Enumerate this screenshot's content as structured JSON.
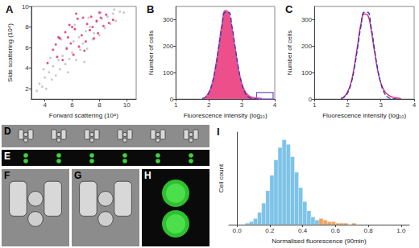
{
  "chart_data": [
    {
      "type": "scatter",
      "title": "A",
      "xlabel": "Forward scattering (10⁴)",
      "ylabel": "Side scattering (10⁴)",
      "xlim": [
        3,
        10.7
      ],
      "xticks": [
        4,
        6,
        8,
        10
      ],
      "ylim": [
        1,
        10
      ],
      "yticks": [
        2,
        4,
        6,
        8,
        10
      ],
      "series": [
        {
          "color": "#bdbdbd",
          "x": [
            3.4,
            3.6,
            3.8,
            4.0,
            4.1,
            4.3,
            4.5,
            4.6,
            4.8,
            5.0,
            5.1,
            5.3,
            5.5,
            5.6,
            5.8,
            6.0,
            6.1,
            6.3,
            6.5,
            6.6,
            6.8,
            7.0,
            7.1,
            7.3,
            7.5,
            7.6,
            7.8,
            8.0,
            8.2,
            8.4,
            8.6,
            8.8,
            9.0,
            9.2,
            9.5,
            9.8,
            4.4,
            5.2,
            6.2,
            7.2,
            8.1,
            9.1,
            3.9,
            5.7,
            6.9
          ],
          "values": [
            1.8,
            2.5,
            2.2,
            3.1,
            2.0,
            3.6,
            2.9,
            4.2,
            3.3,
            4.8,
            3.9,
            5.2,
            4.4,
            6.0,
            4.9,
            5.5,
            6.6,
            4.8,
            7.0,
            5.8,
            6.4,
            7.6,
            5.9,
            8.0,
            6.8,
            7.4,
            8.5,
            7.2,
            8.8,
            7.9,
            9.0,
            8.3,
            9.3,
            8.6,
            9.5,
            9.4,
            5.0,
            6.8,
            8.2,
            8.9,
            9.4,
            9.7,
            3.9,
            3.6,
            4.6
          ]
        },
        {
          "color": "#e0245e",
          "x": [
            4.2,
            4.6,
            4.9,
            5.1,
            5.3,
            5.5,
            5.6,
            5.8,
            5.9,
            6.1,
            6.2,
            6.4,
            6.5,
            6.7,
            6.8,
            7.0,
            7.1,
            7.3,
            7.4,
            7.6,
            7.8,
            7.9,
            8.1,
            8.3,
            8.5,
            8.7,
            9.0,
            5.0,
            5.7,
            6.3,
            6.9,
            7.5,
            8.0,
            4.8,
            6.0
          ],
          "values": [
            4.5,
            5.8,
            5.1,
            6.9,
            4.8,
            7.5,
            5.9,
            8.2,
            6.4,
            5.3,
            7.8,
            8.8,
            6.1,
            7.2,
            8.9,
            6.6,
            8.3,
            7.7,
            9.0,
            6.9,
            8.6,
            7.4,
            8.9,
            8.1,
            9.2,
            8.4,
            8.7,
            7.0,
            7.0,
            9.3,
            5.7,
            8.0,
            9.4,
            6.3,
            8.0
          ]
        }
      ]
    },
    {
      "type": "line",
      "title": "B",
      "xlabel": "Fluorescence intensity (log₁₀)",
      "ylabel": "Number of cells",
      "xlim": [
        1,
        4
      ],
      "xticks": [
        1,
        2,
        3,
        4
      ],
      "ylim": [
        0,
        350
      ],
      "yticks": [
        0,
        100,
        200,
        300
      ],
      "x": [
        1.8,
        1.9,
        2.0,
        2.1,
        2.2,
        2.3,
        2.4,
        2.5,
        2.6,
        2.7,
        2.8,
        2.9,
        3.0,
        3.1,
        3.2,
        3.3,
        3.4,
        3.5,
        3.6
      ],
      "series": [
        {
          "type": "area",
          "color": "#ec4f8a",
          "values": [
            2,
            8,
            25,
            60,
            120,
            200,
            285,
            335,
            325,
            270,
            190,
            115,
            60,
            30,
            15,
            8,
            5,
            4,
            3
          ]
        },
        {
          "type": "line",
          "line_style": "dashed",
          "color": "#2a3fbf",
          "values": [
            2,
            8,
            24,
            58,
            116,
            195,
            276,
            328,
            328,
            276,
            195,
            116,
            58,
            24,
            8,
            2,
            1,
            0,
            0
          ]
        }
      ],
      "box": {
        "x": [
          3.45,
          3.95
        ],
        "y": [
          0,
          25
        ],
        "color": "#7b4fb0"
      }
    },
    {
      "type": "line",
      "title": "C",
      "xlabel": "Fluorescence intensity (log₁₀)",
      "ylabel": "Number of cells",
      "xlim": [
        1,
        4
      ],
      "xticks": [
        1,
        2,
        3,
        4
      ],
      "ylim": [
        0,
        350
      ],
      "yticks": [
        0,
        100,
        200,
        300
      ],
      "x": [
        1.8,
        1.9,
        2.0,
        2.1,
        2.2,
        2.3,
        2.4,
        2.5,
        2.6,
        2.7,
        2.8,
        2.9,
        3.0,
        3.1,
        3.2,
        3.3,
        3.4,
        3.5,
        3.6
      ],
      "series": [
        {
          "type": "line",
          "color": "#e3266a",
          "values": [
            3,
            10,
            28,
            62,
            125,
            205,
            285,
            322,
            318,
            265,
            185,
            110,
            60,
            32,
            18,
            10,
            6,
            4,
            2
          ]
        },
        {
          "type": "line",
          "line_style": "dashed",
          "color": "#2a3fbf",
          "values": [
            2,
            8,
            24,
            58,
            116,
            195,
            276,
            328,
            328,
            276,
            195,
            116,
            58,
            24,
            8,
            2,
            1,
            0,
            0
          ]
        }
      ]
    },
    {
      "type": "histogram",
      "title": "I",
      "xlabel": "Normalised fluorescence (90min)",
      "ylabel": "Cell count",
      "xlim": [
        -0.05,
        1.05
      ],
      "xticks": [
        {
          "value": 0,
          "label": "0.0"
        },
        {
          "value": 0.2,
          "label": "0.2"
        },
        {
          "value": 0.4,
          "label": "0.4"
        },
        {
          "value": 0.6,
          "label": "0.6"
        },
        {
          "value": 0.8,
          "label": "0.8"
        },
        {
          "value": 1,
          "label": "1.0"
        }
      ],
      "ylim": [
        0,
        60
      ],
      "tick_labels": "x",
      "bins": [
        0.05,
        0.075,
        0.1,
        0.125,
        0.15,
        0.175,
        0.2,
        0.225,
        0.25,
        0.275,
        0.3,
        0.325,
        0.35,
        0.375,
        0.4,
        0.425,
        0.45,
        0.475,
        0.5,
        0.525,
        0.55,
        0.575,
        0.6,
        0.625,
        0.65,
        0.675,
        0.7,
        0.725,
        0.75
      ],
      "series": [
        {
          "color": "#7ec3e8",
          "values": [
            1,
            2,
            4,
            8,
            14,
            22,
            32,
            42,
            50,
            55,
            52,
            44,
            34,
            24,
            15,
            9,
            5,
            3,
            0,
            0,
            0,
            0,
            0,
            0,
            0,
            0,
            0,
            0
          ]
        },
        {
          "color": "#f0a561",
          "values": [
            0,
            0,
            0,
            0,
            0,
            0,
            0,
            0,
            0,
            0,
            0,
            0,
            0,
            0,
            0,
            0,
            0,
            0,
            4,
            3,
            2,
            2,
            1,
            1,
            1,
            0,
            1,
            0
          ]
        }
      ]
    }
  ],
  "image_panels": [
    {
      "label": "D"
    },
    {
      "label": "E"
    },
    {
      "label": "F"
    },
    {
      "label": "G"
    },
    {
      "label": "H"
    }
  ]
}
